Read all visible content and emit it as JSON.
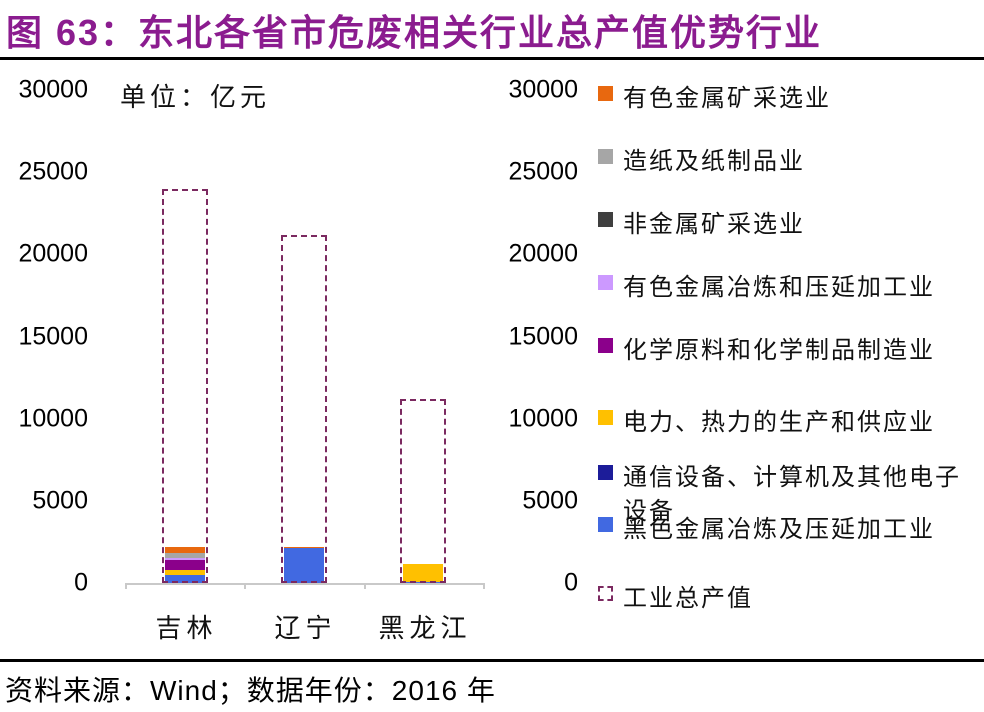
{
  "title": "图 63：东北各省市危废相关行业总产值优势行业",
  "unit_label": "单位：亿元",
  "source_line": "资料来源：Wind；数据年份：2016 年",
  "colors": {
    "title": "#8B1C8F",
    "outline_dash": "#7B2960",
    "axis_line": "#C9C9C9",
    "orange": "#E8680F",
    "gray": "#A6A6A6",
    "dark_gray": "#3F3F3F",
    "light_purple": "#CC99FF",
    "dark_magenta": "#8B008B",
    "yellow": "#FFC000",
    "navy": "#1C1C99",
    "blue": "#4169E1"
  },
  "chart_data": {
    "type": "bar",
    "stacked": true,
    "title": "东北各省市危废相关行业总产值优势行业",
    "ylabel": "单位：亿元",
    "categories": [
      "吉林",
      "辽宁",
      "黑龙江"
    ],
    "ylim": [
      0,
      30000
    ],
    "yticks": [
      0,
      5000,
      10000,
      15000,
      20000,
      25000,
      30000
    ],
    "grid": false,
    "legend_position": "right",
    "series": [
      {
        "name": "黑色金属冶炼及压延加工业",
        "color": "#4169E1",
        "values": [
          500,
          2100,
          80
        ]
      },
      {
        "name": "电力、热力的生产和供应业",
        "color": "#FFC000",
        "values": [
          300,
          0,
          1050
        ]
      },
      {
        "name": "化学原料和化学制品制造业",
        "color": "#8B008B",
        "values": [
          600,
          0,
          0
        ]
      },
      {
        "name": "有色金属冶炼和压延加工业",
        "color": "#CC99FF",
        "values": [
          100,
          0,
          0
        ]
      },
      {
        "name": "造纸及纸制品业",
        "color": "#A6A6A6",
        "values": [
          300,
          0,
          0
        ]
      },
      {
        "name": "有色金属矿采选业",
        "color": "#E8680F",
        "values": [
          400,
          100,
          0
        ]
      },
      {
        "name": "非金属矿采选业",
        "color": "#3F3F3F",
        "values": [
          0,
          0,
          0
        ]
      },
      {
        "name": "通信设备、计算机及其他电子设备",
        "color": "#1C1C99",
        "values": [
          0,
          0,
          0
        ]
      }
    ],
    "outline_series": {
      "name": "工业总产值",
      "color": "#7B2960",
      "values": [
        24000,
        21200,
        11200
      ]
    },
    "legend": [
      {
        "label": "有色金属矿采选业",
        "color": "#E8680F",
        "type": "solid"
      },
      {
        "label": "造纸及纸制品业",
        "color": "#A6A6A6",
        "type": "solid"
      },
      {
        "label": "非金属矿采选业",
        "color": "#3F3F3F",
        "type": "solid"
      },
      {
        "label": "有色金属冶炼和压延加工业",
        "color": "#CC99FF",
        "type": "solid"
      },
      {
        "label": "化学原料和化学制品制造业",
        "color": "#8B008B",
        "type": "solid"
      },
      {
        "label": "电力、热力的生产和供应业",
        "color": "#FFC000",
        "type": "solid"
      },
      {
        "label": "通信设备、计算机及其他电子设备",
        "color": "#1C1C99",
        "type": "solid"
      },
      {
        "label": "黑色金属冶炼及压延加工业",
        "color": "#4169E1",
        "type": "solid"
      },
      {
        "label": "工业总产值",
        "color": "#7B2960",
        "type": "dashed"
      }
    ]
  }
}
